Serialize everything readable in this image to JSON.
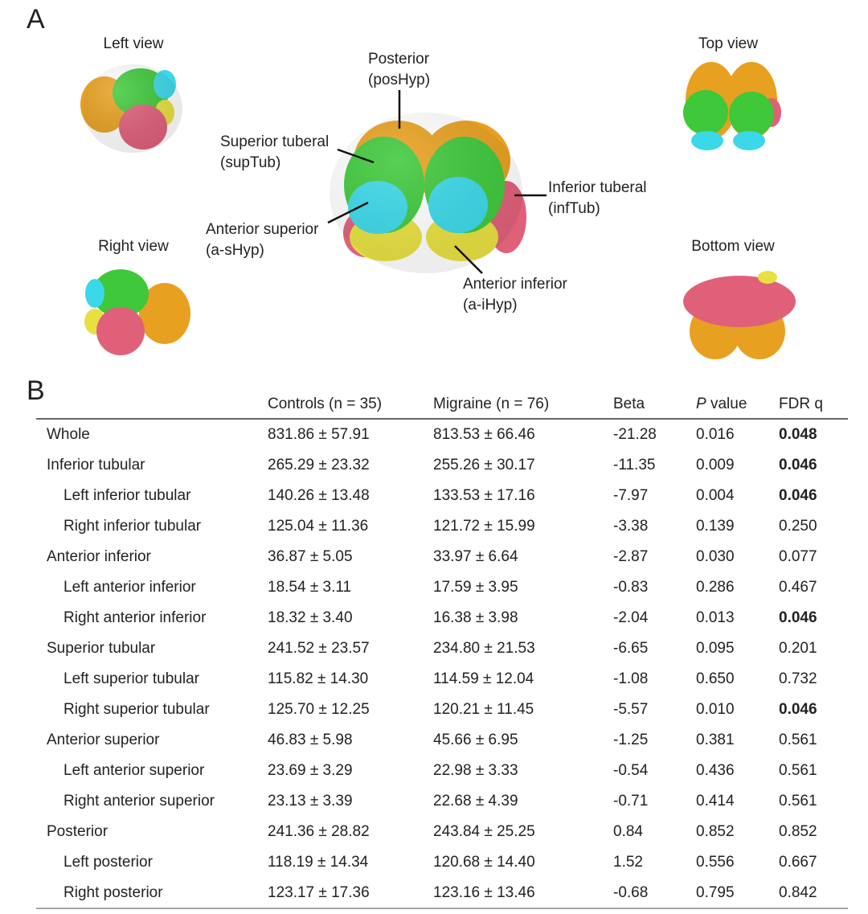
{
  "panel_a": {
    "letter": "A",
    "views": [
      "Left view",
      "Right view",
      "Top view",
      "Bottom view"
    ],
    "annotations": [
      [
        "Posterior",
        "(posHyp)"
      ],
      [
        "Superior tuberal",
        "(supTub)"
      ],
      [
        "Anterior superior",
        "(a-sHyp)"
      ],
      [
        "Inferior tuberal",
        "(infTub)"
      ],
      [
        "Anterior inferior",
        "(a-iHyp)"
      ]
    ]
  },
  "panel_b": {
    "letter": "B",
    "table": {
      "header": [
        "",
        "Controls (n = 35)",
        "Migraine (n = 76)",
        "Beta",
        [
          "P",
          " value"
        ],
        "FDR q"
      ],
      "rows": [
        {
          "cells": [
            "Whole",
            "831.86 ± 57.91",
            "813.53 ± 66.46",
            "-21.28",
            "0.016",
            "0.048"
          ],
          "indent": false,
          "bold": true
        },
        {
          "cells": [
            "Inferior tubular",
            "265.29 ± 23.32",
            "255.26 ± 30.17",
            "-11.35",
            "0.009",
            "0.046"
          ],
          "indent": false,
          "bold": true
        },
        {
          "cells": [
            "Left inferior tubular",
            "140.26 ± 13.48",
            "133.53 ± 17.16",
            "-7.97",
            "0.004",
            "0.046"
          ],
          "indent": true,
          "bold": true
        },
        {
          "cells": [
            "Right inferior tubular",
            "125.04 ± 11.36",
            "121.72 ± 15.99",
            "-3.38",
            "0.139",
            "0.250"
          ],
          "indent": true,
          "bold": false
        },
        {
          "cells": [
            "Anterior inferior",
            "36.87 ± 5.05",
            "33.97 ± 6.64",
            "-2.87",
            "0.030",
            "0.077"
          ],
          "indent": false,
          "bold": false
        },
        {
          "cells": [
            "Left anterior inferior",
            "18.54 ± 3.11",
            "17.59 ± 3.95",
            "-0.83",
            "0.286",
            "0.467"
          ],
          "indent": true,
          "bold": false
        },
        {
          "cells": [
            "Right anterior inferior",
            "18.32 ± 3.40",
            "16.38 ± 3.98",
            "-2.04",
            "0.013",
            "0.046"
          ],
          "indent": true,
          "bold": true
        },
        {
          "cells": [
            "Superior tubular",
            "241.52 ± 23.57",
            "234.80 ± 21.53",
            "-6.65",
            "0.095",
            "0.201"
          ],
          "indent": false,
          "bold": false
        },
        {
          "cells": [
            "Left superior tubular",
            "115.82 ± 14.30",
            "114.59 ± 12.04",
            "-1.08",
            "0.650",
            "0.732"
          ],
          "indent": true,
          "bold": false
        },
        {
          "cells": [
            "Right superior tubular",
            "125.70 ± 12.25",
            "120.21 ± 11.45",
            "-5.57",
            "0.010",
            "0.046"
          ],
          "indent": true,
          "bold": true
        },
        {
          "cells": [
            "Anterior superior",
            "46.83 ± 5.98",
            "45.66 ± 6.95",
            "-1.25",
            "0.381",
            "0.561"
          ],
          "indent": false,
          "bold": false
        },
        {
          "cells": [
            "Left anterior superior",
            "23.69 ± 3.29",
            "22.98 ± 3.33",
            "-0.54",
            "0.436",
            "0.561"
          ],
          "indent": true,
          "bold": false
        },
        {
          "cells": [
            "Right anterior superior",
            "23.13 ± 3.39",
            "22.68 ± 4.39",
            "-0.71",
            "0.414",
            "0.561"
          ],
          "indent": true,
          "bold": false
        },
        {
          "cells": [
            "Posterior",
            "241.36 ± 28.82",
            "243.84 ± 25.25",
            "0.84",
            "0.852",
            "0.852"
          ],
          "indent": false,
          "bold": false
        },
        {
          "cells": [
            "Left posterior",
            "118.19 ± 14.34",
            "120.68 ± 14.40",
            "1.52",
            "0.556",
            "0.667"
          ],
          "indent": true,
          "bold": false
        },
        {
          "cells": [
            "Right posterior",
            "123.17 ± 17.36",
            "123.16 ± 13.46",
            "-0.68",
            "0.795",
            "0.842"
          ],
          "indent": true,
          "bold": false
        }
      ]
    }
  }
}
